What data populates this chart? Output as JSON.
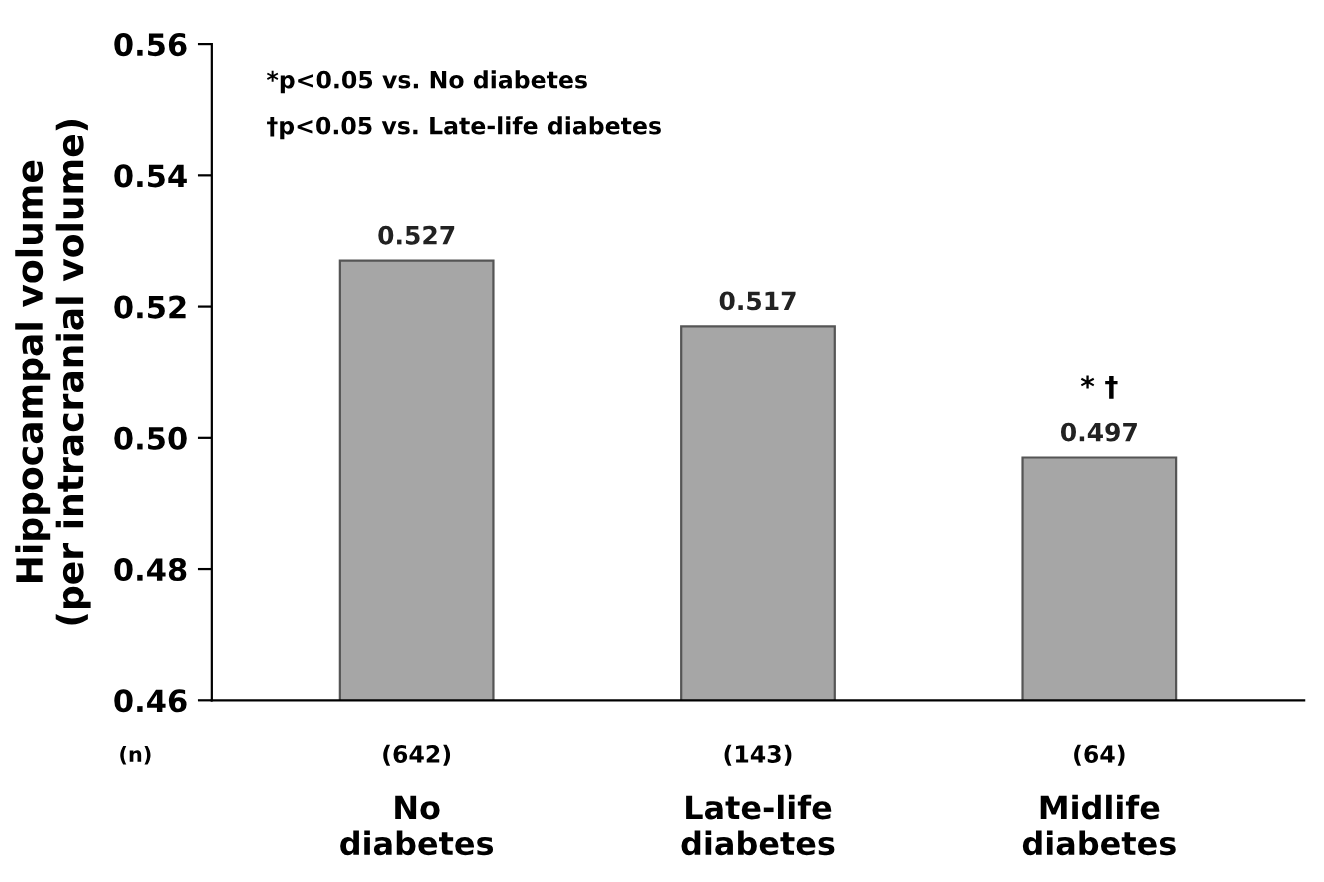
{
  "chart_data": {
    "type": "bar",
    "ylabel": "Hippocampal volume\n(per intracranial volume)",
    "categories": [
      "No\ndiabetes",
      "Late-life\ndiabetes",
      "Midlife\ndiabetes"
    ],
    "values": [
      0.527,
      0.517,
      0.497
    ],
    "color": "#a6a6a6",
    "data_labels": true,
    "ylim": [
      0.46,
      0.56
    ],
    "yticks": [
      0.46,
      0.48,
      {
        "value": 0.5,
        "label": "0.50"
      },
      0.52,
      0.54,
      0.56
    ],
    "grid": false,
    "annotations": [
      "*p<0.05 vs. No diabetes",
      "†p<0.05 vs. Late-life diabetes",
      "(n)",
      "(642)",
      "(143)",
      "(64)",
      "* †"
    ]
  }
}
